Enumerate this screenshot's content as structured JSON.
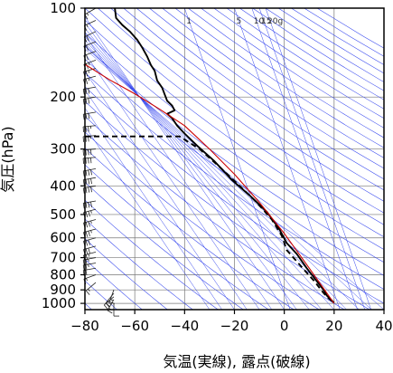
{
  "chart_data": {
    "type": "line",
    "title": "",
    "xlabel": "気温(実線), 露点(破線)",
    "ylabel": "気圧(hPa)",
    "xlim": [
      -80,
      40
    ],
    "ylim_hpa": [
      1050,
      100
    ],
    "y_scale": "log",
    "grid": true,
    "x_ticks": [
      -80,
      -60,
      -40,
      -20,
      0,
      20,
      40
    ],
    "y_ticks": [
      100,
      200,
      300,
      400,
      500,
      600,
      700,
      800,
      900,
      1000
    ],
    "mixing_ratio_labels": [
      "1",
      "5",
      "10",
      "15",
      "20g"
    ],
    "series": [
      {
        "role": "temperature",
        "style": "solid",
        "color": "#000000",
        "points": [
          [
            -68,
            100
          ],
          [
            -67.5,
            108
          ],
          [
            -65,
            114
          ],
          [
            -62,
            120
          ],
          [
            -59,
            128
          ],
          [
            -57,
            136
          ],
          [
            -55,
            146
          ],
          [
            -53.5,
            156
          ],
          [
            -52,
            163
          ],
          [
            -51,
            176
          ],
          [
            -49,
            186
          ],
          [
            -48,
            196
          ],
          [
            -47,
            206
          ],
          [
            -45,
            214
          ],
          [
            -44,
            222
          ],
          [
            -47,
            228
          ],
          [
            -45,
            236
          ],
          [
            -43,
            250
          ],
          [
            -40,
            266
          ],
          [
            -35,
            292
          ],
          [
            -28,
            330
          ],
          [
            -21,
            382
          ],
          [
            -14,
            430
          ],
          [
            -7,
            490
          ],
          [
            -2,
            560
          ],
          [
            1,
            625
          ],
          [
            5,
            680
          ],
          [
            9,
            760
          ],
          [
            13,
            840
          ],
          [
            16,
            905
          ],
          [
            17,
            940
          ],
          [
            20,
            995
          ]
        ]
      },
      {
        "role": "dewpoint",
        "style": "dashed",
        "color": "#000000",
        "points": [
          [
            -80,
            272
          ],
          [
            -42,
            272
          ],
          [
            -34,
            300
          ],
          [
            -26,
            345
          ],
          [
            -19,
            392
          ],
          [
            -11,
            455
          ],
          [
            -5,
            520
          ],
          [
            -1,
            590
          ],
          [
            1,
            660
          ],
          [
            4,
            705
          ],
          [
            8,
            770
          ],
          [
            12,
            840
          ],
          [
            15,
            905
          ],
          [
            17,
            950
          ],
          [
            20,
            995
          ]
        ]
      },
      {
        "role": "parcel",
        "style": "solid",
        "color": "#cc0000",
        "points": [
          [
            -80,
            155
          ],
          [
            -70,
            175
          ],
          [
            -60,
            195
          ],
          [
            -50,
            220
          ],
          [
            -40,
            250
          ],
          [
            -30,
            300
          ],
          [
            -20,
            365
          ],
          [
            -10,
            455
          ],
          [
            0,
            580
          ],
          [
            10,
            760
          ],
          [
            20,
            1000
          ]
        ]
      }
    ],
    "wind_barbs": [
      {
        "p": 1000,
        "dir": 180,
        "spd": 10
      },
      {
        "p": 970,
        "dir": 210,
        "spd": 15
      },
      {
        "p": 950,
        "dir": 230,
        "spd": 20
      },
      {
        "p": 925,
        "dir": 220,
        "spd": 20
      },
      {
        "p": 900,
        "dir": 200,
        "spd": 15
      },
      {
        "p": 850,
        "dir": 230,
        "spd": 15
      },
      {
        "p": 800,
        "dir": 250,
        "spd": 15
      },
      {
        "p": 760,
        "dir": 260,
        "spd": 20
      },
      {
        "p": 730,
        "dir": 260,
        "spd": 25
      },
      {
        "p": 700,
        "dir": 260,
        "spd": 25
      },
      {
        "p": 670,
        "dir": 255,
        "spd": 25
      },
      {
        "p": 640,
        "dir": 255,
        "spd": 30
      },
      {
        "p": 600,
        "dir": 255,
        "spd": 30
      },
      {
        "p": 560,
        "dir": 255,
        "spd": 35
      },
      {
        "p": 520,
        "dir": 255,
        "spd": 35
      },
      {
        "p": 480,
        "dir": 255,
        "spd": 35
      },
      {
        "p": 450,
        "dir": 260,
        "spd": 40
      },
      {
        "p": 400,
        "dir": 260,
        "spd": 40
      },
      {
        "p": 375,
        "dir": 260,
        "spd": 40
      },
      {
        "p": 350,
        "dir": 260,
        "spd": 40
      },
      {
        "p": 320,
        "dir": 265,
        "spd": 40
      },
      {
        "p": 300,
        "dir": 265,
        "spd": 40
      },
      {
        "p": 270,
        "dir": 265,
        "spd": 35
      },
      {
        "p": 250,
        "dir": 265,
        "spd": 35
      },
      {
        "p": 225,
        "dir": 260,
        "spd": 30
      },
      {
        "p": 200,
        "dir": 260,
        "spd": 30
      },
      {
        "p": 185,
        "dir": 260,
        "spd": 30
      },
      {
        "p": 170,
        "dir": 255,
        "spd": 25
      },
      {
        "p": 160,
        "dir": 255,
        "spd": 25
      },
      {
        "p": 150,
        "dir": 250,
        "spd": 25
      },
      {
        "p": 140,
        "dir": 250,
        "spd": 20
      },
      {
        "p": 130,
        "dir": 250,
        "spd": 20
      },
      {
        "p": 120,
        "dir": 245,
        "spd": 20
      },
      {
        "p": 110,
        "dir": 245,
        "spd": 15
      },
      {
        "p": 100,
        "dir": 240,
        "spd": 15
      }
    ]
  }
}
